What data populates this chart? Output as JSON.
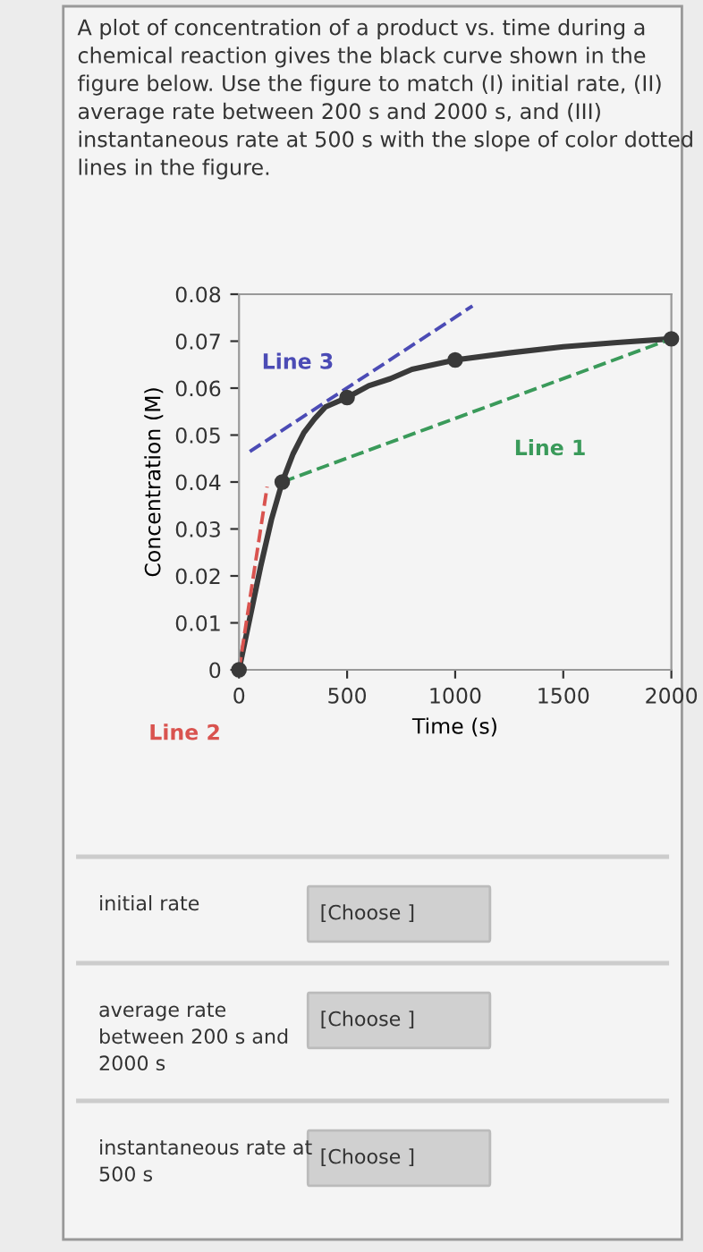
{
  "chart_data": {
    "type": "line",
    "title": "A plot of concentration of a product vs. time during a chemical reaction gives the black curve shown in the figure below. Use the figure to match (I) initial rate, (II) average rate between 200 s and 2000 s, and (III) instantaneous rate at 500 s with the slope of color dotted lines in the figure.",
    "xlabel": "Time (s)",
    "ylabel": "Concentration (M)",
    "series": [
      {
        "color": "#3a3a3a",
        "x": [
          0,
          50,
          100,
          150,
          200,
          250,
          300,
          350,
          400,
          500,
          600,
          700,
          800,
          900,
          1000,
          1250,
          1500,
          1750,
          2000
        ],
        "values": [
          0,
          0.011,
          0.022,
          0.032,
          0.04,
          0.046,
          0.0505,
          0.0535,
          0.056,
          0.058,
          0.0605,
          0.062,
          0.064,
          0.065,
          0.066,
          0.0675,
          0.0688,
          0.0697,
          0.0705
        ],
        "marker": "none",
        "line_style": "solid"
      },
      {
        "type": "scatter",
        "color": "#3a3a3a",
        "x": [
          0,
          200,
          500,
          1000,
          2000
        ],
        "values": [
          0,
          0.04,
          0.058,
          0.066,
          0.0705
        ],
        "marker": "circle"
      },
      {
        "name": "Line 1",
        "color": "#3a9a5a",
        "x": [
          200,
          2000
        ],
        "values": [
          0.04,
          0.0705
        ],
        "marker": "none",
        "line_style": "dashed"
      },
      {
        "name": "Line 2",
        "color": "#d9534f",
        "x": [
          0,
          130
        ],
        "values": [
          0,
          0.039
        ],
        "marker": "none",
        "line_style": "dashed"
      },
      {
        "name": "Line 3",
        "color": "#4b4bb5",
        "x": [
          50,
          1080
        ],
        "values": [
          0.0465,
          0.0775
        ],
        "marker": "none",
        "line_style": "dashed"
      }
    ],
    "xlim": [
      0,
      2000
    ],
    "xticks": [
      0,
      500,
      1000,
      1500,
      2000
    ],
    "ylim": [
      0,
      0.08
    ],
    "yticks": [
      0,
      0.01,
      0.02,
      0.03,
      0.04,
      0.05,
      0.06,
      0.07,
      0.08
    ],
    "grid": false,
    "legend": false,
    "annotations": [
      "initial rate",
      "[Choose ]",
      "average rate\nbetween 200 s and\n2000 s",
      "[Choose ]",
      "instantaneous rate at\n500 s",
      "[Choose ]"
    ]
  }
}
